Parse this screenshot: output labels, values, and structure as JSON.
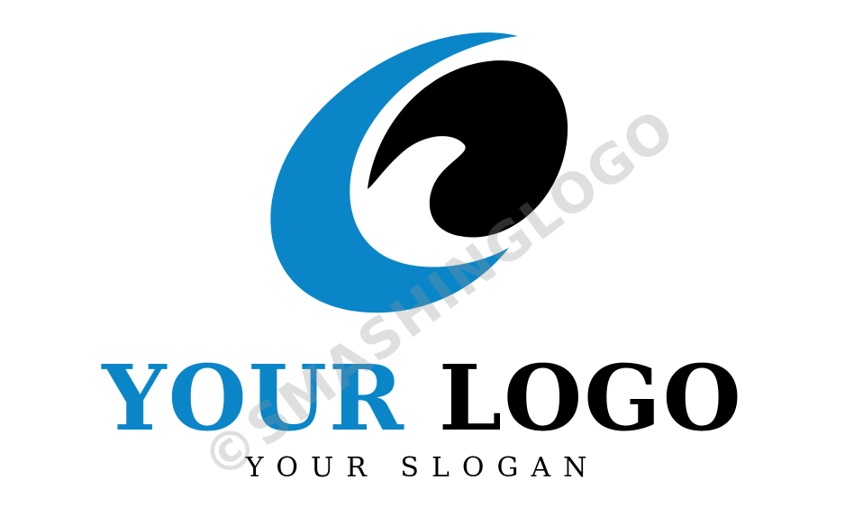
{
  "logo": {
    "brand_word_1": "YOUR",
    "brand_word_2": "LOGO",
    "slogan": "YOUR SLOGAN",
    "emblem_icon": "crescent-wave-icon"
  },
  "watermark": {
    "text": "©SMASHINGLOGO"
  },
  "colors": {
    "accent": "#0a86c8",
    "dark": "#000000",
    "background": "#ffffff",
    "watermark": "#969696"
  }
}
